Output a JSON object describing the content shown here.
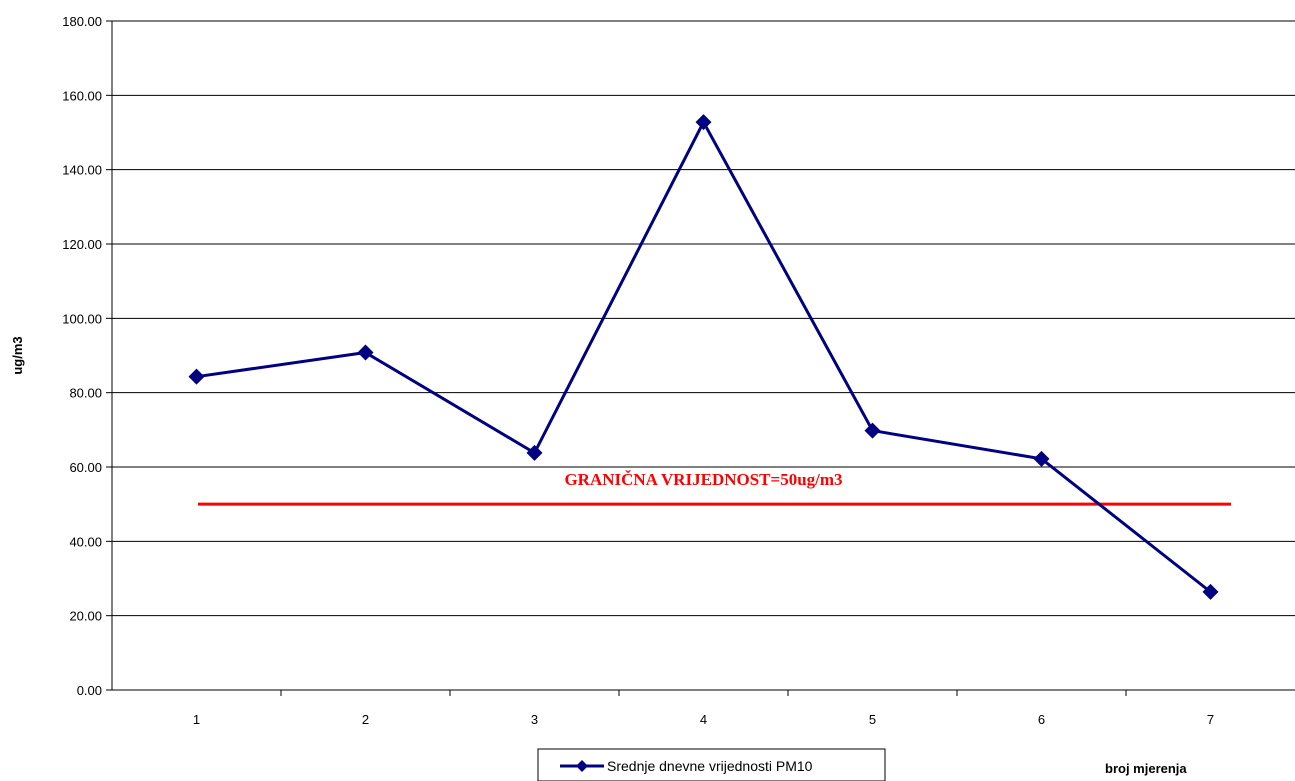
{
  "chart_data": {
    "type": "line",
    "title": "",
    "xlabel": "broj mjerenja",
    "ylabel": "ug/m3",
    "ylim": [
      0,
      180
    ],
    "ytick_step": 20,
    "ytick_labels": [
      "0.00",
      "20.00",
      "40.00",
      "60.00",
      "80.00",
      "100.00",
      "120.00",
      "140.00",
      "160.00",
      "180.00"
    ],
    "categories": [
      "1",
      "2",
      "3",
      "4",
      "5",
      "6",
      "7"
    ],
    "series": [
      {
        "name": "Srednje dnevne vrijednosti PM10",
        "values": [
          84.3,
          90.8,
          63.8,
          152.8,
          69.8,
          62.2,
          26.4
        ],
        "color": "#000080",
        "marker": "diamond"
      }
    ],
    "reference_line": {
      "label": "GRANIČNA VRIJEDNOST=50ug/m3",
      "value": 50,
      "color": "#ff0000"
    },
    "grid": true,
    "legend_position": "bottom-center"
  }
}
